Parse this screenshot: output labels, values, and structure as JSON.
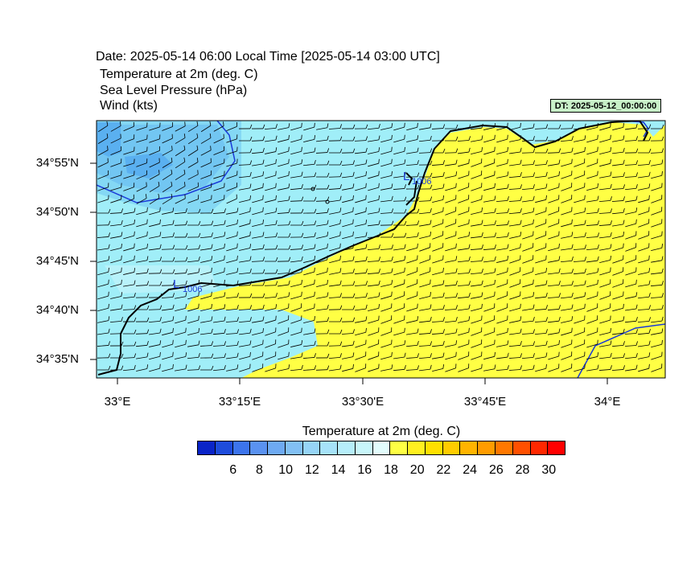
{
  "header": {
    "date_line": "Date: 2025-05-14  06:00 Local Time [2025-05-14  03:00 UTC]",
    "var1": "Temperature at 2m   (deg. C)",
    "var2": "Sea Level Pressure   (hPa)",
    "var3": "Wind   (kts)",
    "dt_badge": "DT: 2025-05-12_00:00:00"
  },
  "map": {
    "lat_labels": [
      "34°55'N",
      "34°50'N",
      "34°45'N",
      "34°40'N",
      "34°35'N"
    ],
    "lon_labels": [
      "33°E",
      "33°15'E",
      "33°30'E",
      "33°45'E",
      "34°E"
    ],
    "pressure_lows": [
      {
        "symbol": "L",
        "value": "1006"
      },
      {
        "symbol": "L",
        "value": "1006"
      }
    ],
    "colors": {
      "land": "#ffff44",
      "sea_light": "#a0eef8",
      "sea_mid": "#80d8f4",
      "sea_dark": "#5ab0f0",
      "isobar": "#1a3ad8",
      "coast": "#000000"
    }
  },
  "colorbar": {
    "title": "Temperature at 2m  (deg. C)",
    "colors": [
      "#0a24c8",
      "#1e4cdc",
      "#3c74ec",
      "#5a92f0",
      "#6eaaf2",
      "#82c0f4",
      "#96d4f6",
      "#a6e2f8",
      "#b6eefa",
      "#c8f6fa",
      "#e2fcfc",
      "#ffff44",
      "#fff020",
      "#ffe000",
      "#ffcc00",
      "#ffb400",
      "#ff9c00",
      "#ff7800",
      "#ff5000",
      "#ff2800",
      "#ff0000"
    ],
    "labels": [
      "6",
      "8",
      "10",
      "12",
      "14",
      "16",
      "18",
      "20",
      "22",
      "24",
      "26",
      "28",
      "30"
    ]
  }
}
